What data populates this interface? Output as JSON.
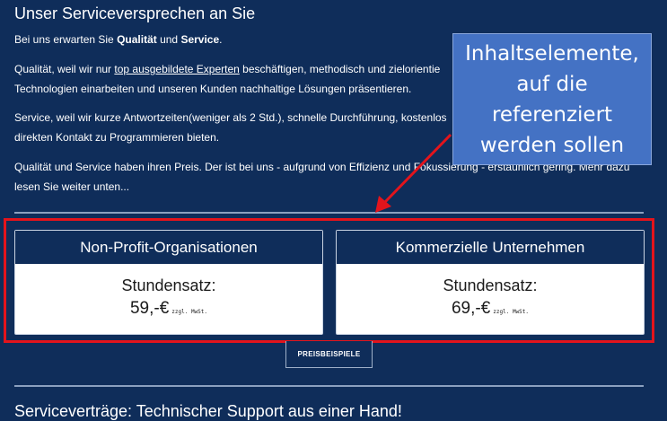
{
  "section_title": "Unser Serviceversprechen an Sie",
  "intro": {
    "prefix": "Bei uns erwarten Sie ",
    "b1": "Qualität",
    "mid": " und ",
    "b2": "Service",
    "suffix": "."
  },
  "p1": {
    "line1_prefix": "Qualität, weil wir nur ",
    "link": "top ausgebildete Experten",
    "line1_suffix": " beschäftigen, methodisch und zielorientie",
    "line2": "Technologien einarbeiten und unseren Kunden nachhaltige Lösungen präsentieren."
  },
  "p2": {
    "line1": "Service, weil wir kurze Antwortzeiten(weniger als 2 Std.), schnelle Durchführung, kostenlos",
    "line2": "direkten Kontakt zu Programmieren bieten."
  },
  "p3": {
    "line1": "Qualität und Service haben ihren Preis. Der ist bei uns - aufgrund von Effizienz und Fokussierung - erstaunlich gering. Mehr dazu",
    "line2": "lesen Sie weiter unten..."
  },
  "cards": [
    {
      "title": "Non-Profit-Organisationen",
      "label": "Stundensatz:",
      "price": "59,-€",
      "note": "zzgl. MwSt."
    },
    {
      "title": "Kommerzielle Unternehmen",
      "label": "Stundensatz:",
      "price": "69,-€",
      "note": "zzgl. MwSt."
    }
  ],
  "button_label": "PREISBEISPIELE",
  "next_section_title": "Serviceverträge: Technischer Support aus einer Hand!",
  "annotation": {
    "text": "Inhaltselemente, auf die referenziert werden sollen",
    "box_color": "#4472c4",
    "highlight_color": "#e3141c"
  },
  "colors": {
    "background": "#0f2d5a"
  }
}
